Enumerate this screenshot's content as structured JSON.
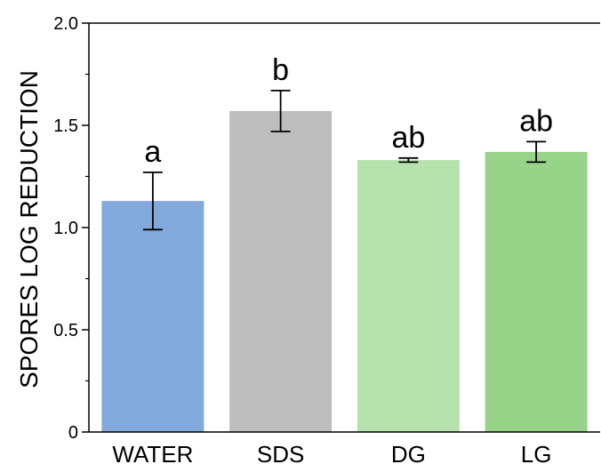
{
  "chart_data": {
    "type": "bar",
    "title": "",
    "xlabel": "",
    "ylabel": "SPORES LOG REDUCTION",
    "ylim": [
      0,
      2.0
    ],
    "yticks": [
      "0",
      "0.5",
      "1.0",
      "1.5",
      "2.0"
    ],
    "grid": false,
    "categories": [
      "WATER",
      "SDS",
      "DG",
      "LG"
    ],
    "values": [
      1.13,
      1.57,
      1.33,
      1.37
    ],
    "errors": [
      0.14,
      0.1,
      0.01,
      0.05
    ],
    "significance_labels": [
      "a",
      "b",
      "ab",
      "ab"
    ],
    "colors": [
      "#82a9dc",
      "#bdbdbd",
      "#b6e2ad",
      "#97d389"
    ]
  }
}
